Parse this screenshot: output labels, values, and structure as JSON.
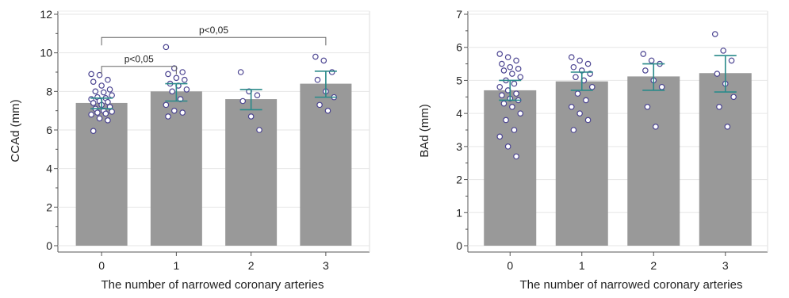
{
  "chart_data": [
    {
      "type": "bar",
      "categories": [
        "0",
        "1",
        "2",
        "3"
      ],
      "values": [
        7.4,
        8.0,
        7.6,
        8.4
      ],
      "error_bars": [
        [
          7.1,
          7.65
        ],
        [
          7.5,
          8.4
        ],
        [
          7.05,
          8.1
        ],
        [
          7.7,
          9.05
        ]
      ],
      "points": [
        [
          8.9,
          8.85,
          8.6,
          8.5,
          8.3,
          8.1,
          8.0,
          7.95,
          7.8,
          7.7,
          7.65,
          7.6,
          7.5,
          7.45,
          7.4,
          7.3,
          7.2,
          7.1,
          7.0,
          6.95,
          6.9,
          6.85,
          6.8,
          6.6,
          6.5,
          5.95
        ],
        [
          10.3,
          9.2,
          9.0,
          8.9,
          8.7,
          8.6,
          8.4,
          8.3,
          8.1,
          8.0,
          7.6,
          7.3,
          7.0,
          6.9,
          6.7
        ],
        [
          9.0,
          8.0,
          7.8,
          7.5,
          6.7,
          6.0
        ],
        [
          9.8,
          9.6,
          9.0,
          8.6,
          8.0,
          7.7,
          7.3,
          7.0
        ]
      ],
      "xlabel": "The number of narrowed coronary arteries",
      "ylabel": "CCAd (mm)",
      "ylim": [
        0,
        12
      ],
      "yticks": [
        "0",
        "2",
        "4",
        "6",
        "8",
        "10",
        "12"
      ],
      "grid": true,
      "annotations": [
        {
          "label": "p<0,05",
          "from": "0",
          "to": "1",
          "y": 9.3
        },
        {
          "label": "p<0,05",
          "from": "0",
          "to": "3",
          "y": 10.8
        }
      ],
      "colors": {
        "bar": "#999999",
        "error": "#2a8a8a",
        "point_fill": "#ffffff",
        "point_edge": "#4b4491"
      }
    },
    {
      "type": "bar",
      "categories": [
        "0",
        "1",
        "2",
        "3"
      ],
      "values": [
        4.7,
        4.97,
        5.12,
        5.22
      ],
      "error_bars": [
        [
          4.4,
          5.0
        ],
        [
          4.7,
          5.25
        ],
        [
          4.7,
          5.5
        ],
        [
          4.65,
          5.75
        ]
      ],
      "points": [
        [
          5.8,
          5.7,
          5.6,
          5.5,
          5.4,
          5.35,
          5.3,
          5.2,
          5.1,
          5.0,
          4.9,
          4.8,
          4.7,
          4.6,
          4.55,
          4.45,
          4.4,
          4.3,
          4.2,
          4.0,
          3.8,
          3.5,
          3.3,
          3.0,
          2.7
        ],
        [
          5.7,
          5.6,
          5.5,
          5.4,
          5.3,
          5.2,
          5.1,
          5.0,
          4.8,
          4.6,
          4.4,
          4.2,
          4.0,
          3.8,
          3.5
        ],
        [
          5.8,
          5.6,
          5.5,
          5.3,
          5.0,
          4.8,
          4.2,
          3.6
        ],
        [
          6.4,
          5.9,
          5.6,
          5.2,
          4.9,
          4.5,
          4.2,
          3.6
        ]
      ],
      "xlabel": "The number of narrowed coronary arteries",
      "ylabel": "BAd (mm)",
      "ylim": [
        0,
        7
      ],
      "yticks": [
        "0",
        "1",
        "2",
        "3",
        "4",
        "5",
        "6",
        "7"
      ],
      "grid": true,
      "annotations": [],
      "colors": {
        "bar": "#999999",
        "error": "#2a8a8a",
        "point_fill": "#ffffff",
        "point_edge": "#4b4491"
      }
    }
  ]
}
